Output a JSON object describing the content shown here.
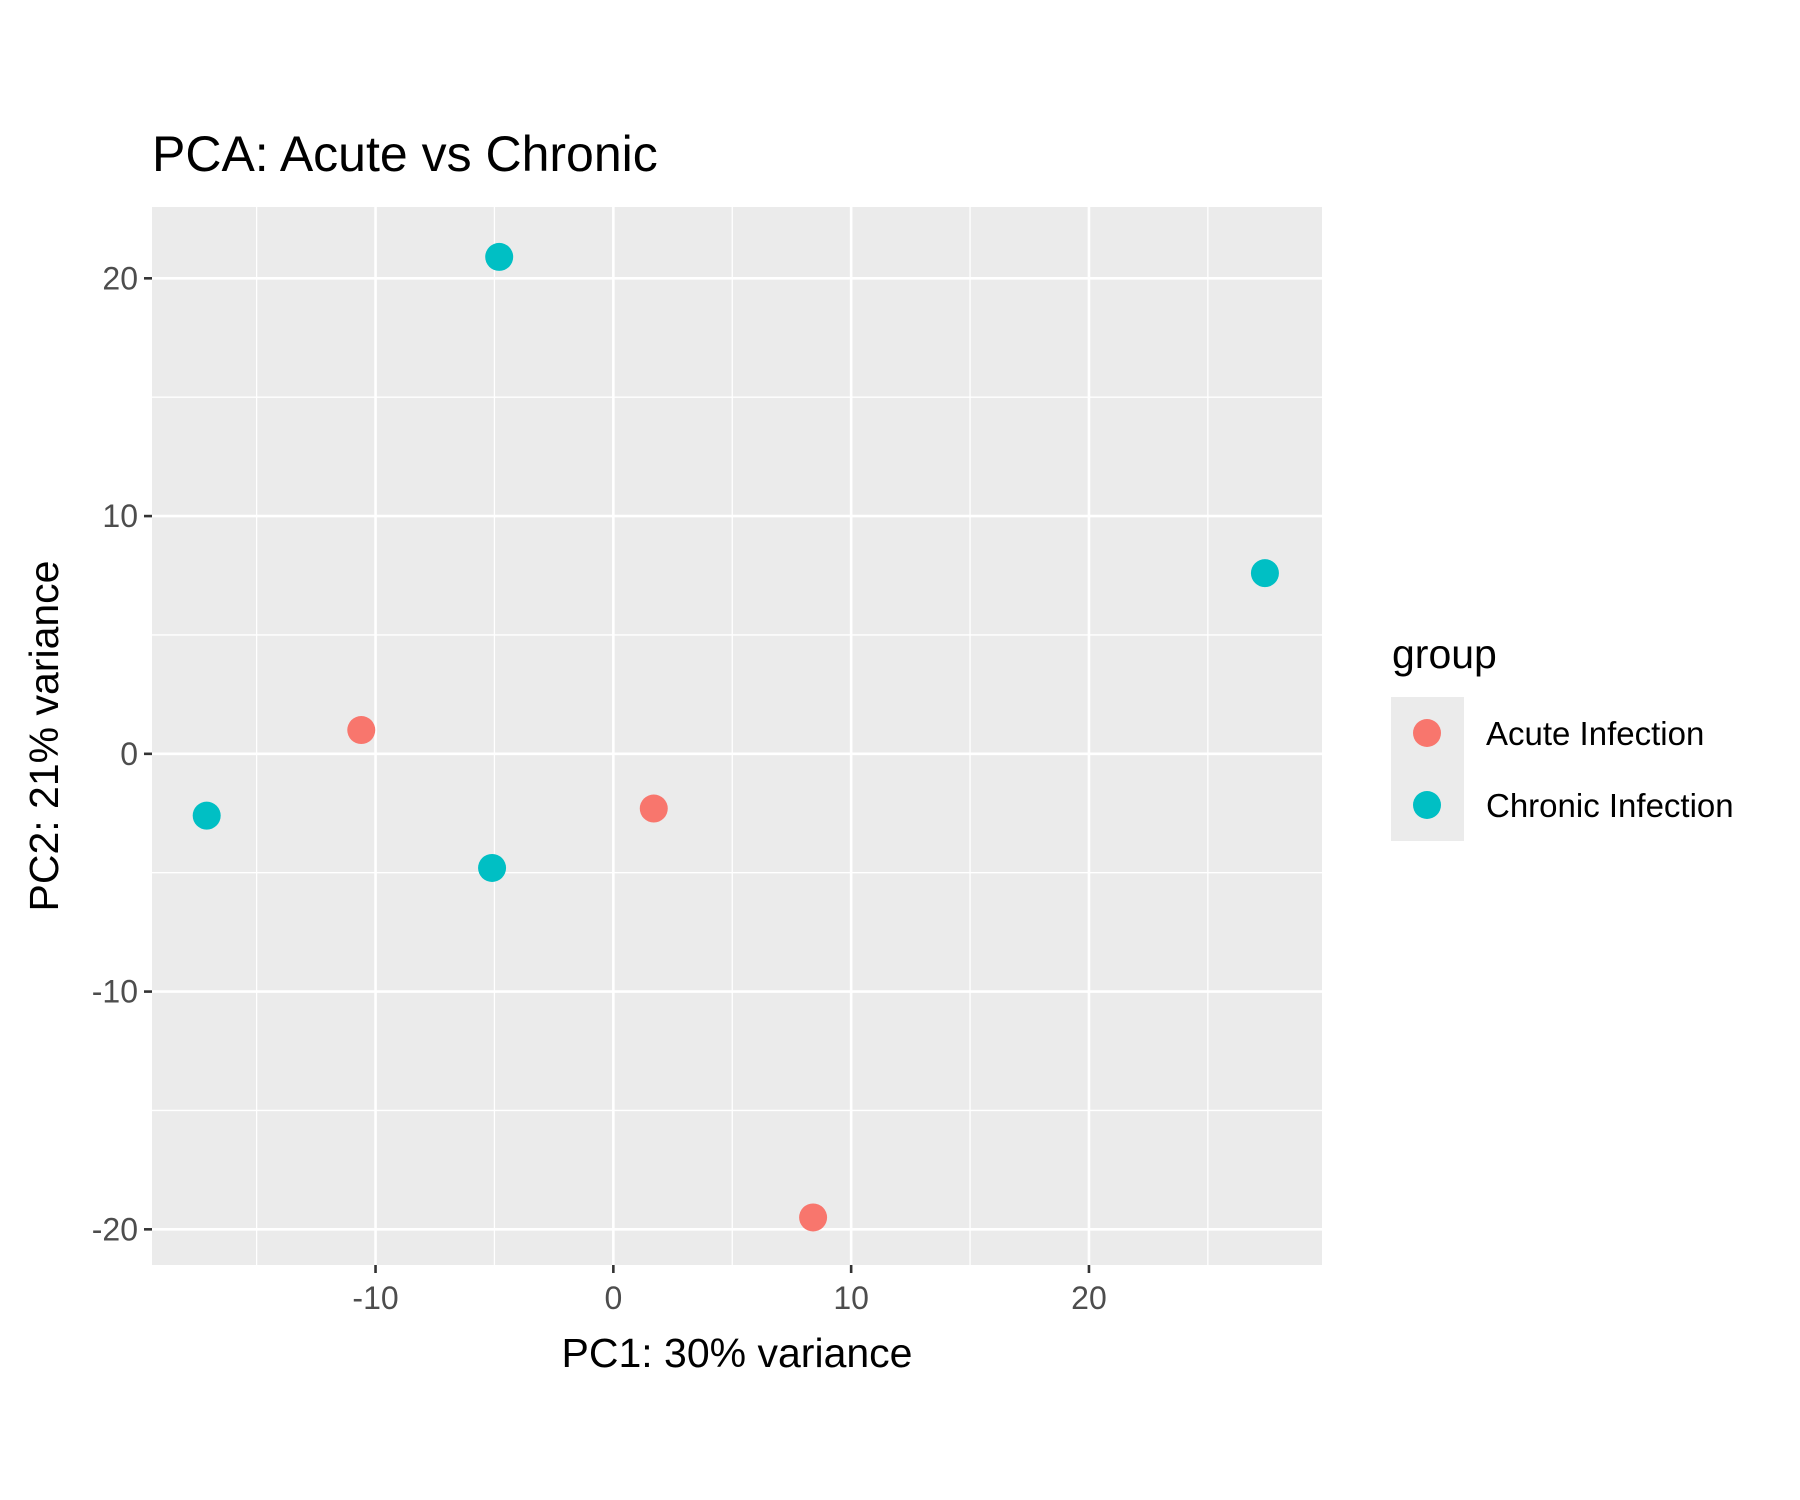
{
  "chart_data": {
    "type": "scatter",
    "title": "PCA: Acute vs Chronic",
    "xlabel": "PC1: 30% variance",
    "ylabel": "PC2: 21% variance",
    "xlim": [
      -19.4,
      29.8
    ],
    "ylim": [
      -21.5,
      23.0
    ],
    "x_ticks": [
      -10,
      0,
      10,
      20
    ],
    "y_ticks": [
      -20,
      -10,
      0,
      10,
      20
    ],
    "x_tick_labels": [
      "-10",
      "0",
      "10",
      "20"
    ],
    "y_tick_labels": [
      "-20",
      "-10",
      "0",
      "10",
      "20"
    ],
    "grid": true,
    "legend": {
      "title": "group",
      "position": "right",
      "entries": [
        "Acute Infection",
        "Chronic Infection"
      ]
    },
    "colors": {
      "Acute Infection": "#F8766D",
      "Chronic Infection": "#00BFC4",
      "panel_background": "#EBEBEB",
      "grid": "#FFFFFF"
    },
    "series": [
      {
        "name": "Acute Infection",
        "points": [
          {
            "x": -10.6,
            "y": 1.0
          },
          {
            "x": 1.7,
            "y": -2.3
          },
          {
            "x": 8.4,
            "y": -19.5
          }
        ]
      },
      {
        "name": "Chronic Infection",
        "points": [
          {
            "x": -4.8,
            "y": 20.9
          },
          {
            "x": 27.4,
            "y": 7.6
          },
          {
            "x": -17.1,
            "y": -2.6
          },
          {
            "x": -5.1,
            "y": -4.8
          }
        ]
      }
    ]
  }
}
